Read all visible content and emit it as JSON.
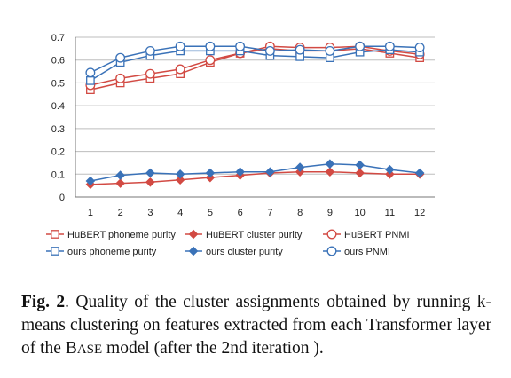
{
  "chart_data": {
    "type": "line",
    "title": "",
    "xlabel": "",
    "ylabel": "",
    "x": [
      1,
      2,
      3,
      4,
      5,
      6,
      7,
      8,
      9,
      10,
      11,
      12
    ],
    "x_tick_labels": [
      "1",
      "2",
      "3",
      "4",
      "5",
      "6",
      "7",
      "8",
      "9",
      "10",
      "11",
      "12"
    ],
    "ylim": [
      0,
      0.7
    ],
    "y_ticks": [
      0,
      0.1,
      0.2,
      0.3,
      0.4,
      0.5,
      0.6,
      0.7
    ],
    "y_tick_labels": [
      "0",
      "0.1",
      "0.2",
      "0.3",
      "0.4",
      "0.5",
      "0.6",
      "0.7"
    ],
    "grid": "horizontal",
    "legend_position": "bottom",
    "series": [
      {
        "name": "HuBERT phoneme purity",
        "color": "#d24a43",
        "marker": "square",
        "values": [
          0.47,
          0.5,
          0.52,
          0.54,
          0.59,
          0.63,
          0.65,
          0.64,
          0.64,
          0.65,
          0.63,
          0.61
        ]
      },
      {
        "name": "HuBERT cluster purity",
        "color": "#d24a43",
        "marker": "diamond",
        "values": [
          0.055,
          0.06,
          0.065,
          0.075,
          0.085,
          0.095,
          0.105,
          0.11,
          0.11,
          0.105,
          0.1,
          0.1
        ]
      },
      {
        "name": "HuBERT PNMI",
        "color": "#d24a43",
        "marker": "circle",
        "values": [
          0.49,
          0.52,
          0.54,
          0.56,
          0.6,
          0.63,
          0.66,
          0.655,
          0.655,
          0.66,
          0.64,
          0.625
        ]
      },
      {
        "name": "ours phoneme purity",
        "color": "#3a72b8",
        "marker": "square",
        "values": [
          0.51,
          0.59,
          0.62,
          0.64,
          0.64,
          0.64,
          0.62,
          0.615,
          0.61,
          0.635,
          0.645,
          0.635
        ]
      },
      {
        "name": "ours cluster purity",
        "color": "#3a72b8",
        "marker": "diamond",
        "values": [
          0.07,
          0.095,
          0.105,
          0.1,
          0.105,
          0.11,
          0.11,
          0.13,
          0.145,
          0.14,
          0.12,
          0.105
        ]
      },
      {
        "name": "ours PNMI",
        "color": "#3a72b8",
        "marker": "circle",
        "values": [
          0.545,
          0.61,
          0.64,
          0.66,
          0.66,
          0.66,
          0.64,
          0.645,
          0.64,
          0.66,
          0.66,
          0.655
        ]
      }
    ]
  },
  "caption": {
    "label": "Fig. 2",
    "text_before": ". Quality of the cluster assignments obtained by running k-means clustering on features extracted from each Transformer layer of the B",
    "base_smallcaps": "ASE",
    "text_after": " model (after the 2nd iteration )."
  }
}
